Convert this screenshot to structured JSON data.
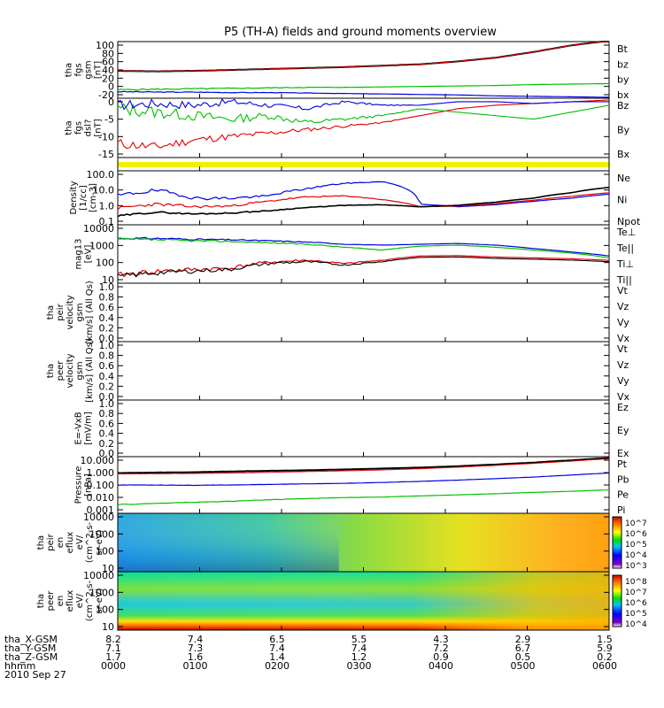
{
  "title": "P5 (TH-A) fields and ground moments overview",
  "colors": {
    "black": "#000000",
    "red": "#e00000",
    "green": "#00c000",
    "blue": "#0000e0",
    "yellow": "#f0f000"
  },
  "chart_data": {
    "type": "line",
    "panels": [
      {
        "id": "fgs",
        "ylabel": [
          "tha",
          "fgs",
          "gsm",
          "[nT]"
        ],
        "yticks": [
          "100",
          "80",
          "60",
          "40",
          "20",
          "0",
          "-20"
        ],
        "ylim": [
          -20,
          100
        ],
        "legend": [
          {
            "text": "Bt",
            "color": "black"
          },
          {
            "text": "bz",
            "color": "red"
          },
          {
            "text": "by",
            "color": "green"
          },
          {
            "text": "bx",
            "color": "blue"
          }
        ]
      },
      {
        "id": "fgs_dsl",
        "ylabel": [
          "tha",
          "fgs",
          "dsl?",
          "[nT]"
        ],
        "yticks": [
          "0",
          "-5",
          "-10",
          "-15"
        ],
        "ylim": [
          -15,
          2
        ],
        "legend": [
          {
            "text": "Bz",
            "color": "red"
          },
          {
            "text": "By",
            "color": "green"
          },
          {
            "text": "Bx",
            "color": "blue"
          }
        ]
      },
      {
        "id": "flag",
        "ylabel": [],
        "yticks": [],
        "legend": []
      },
      {
        "id": "density",
        "ylabel": [
          "Density",
          "[1/cc]",
          "[cm-3]"
        ],
        "yticks": [
          "100.0",
          "10.0",
          "1.0",
          "0.1"
        ],
        "log": true,
        "ylim": [
          0.1,
          100
        ],
        "legend": [
          {
            "text": "Ne",
            "color": "red"
          },
          {
            "text": "Ni",
            "color": "black"
          },
          {
            "text": "Npot",
            "color": "blue"
          }
        ]
      },
      {
        "id": "temp",
        "ylabel": [
          "mag13",
          "[eV]"
        ],
        "yticks": [
          "10000",
          "1000",
          "100",
          "10"
        ],
        "log": true,
        "ylim": [
          10,
          10000
        ],
        "legend": [
          {
            "text": "Te⊥",
            "color": "red"
          },
          {
            "text": "Te||",
            "color": "black"
          },
          {
            "text": "Ti⊥",
            "color": "blue"
          },
          {
            "text": "Ti||",
            "color": "green"
          }
        ]
      },
      {
        "id": "peir_vel",
        "ylabel": [
          "tha",
          "peir",
          "velocity",
          "gsm",
          "[km/s] (All Qs)"
        ],
        "yticks": [
          "1.0",
          "0.8",
          "0.6",
          "0.4",
          "0.2",
          "0.0"
        ],
        "ylim": [
          0,
          1
        ],
        "legend": [
          {
            "text": "Vt",
            "color": "black"
          },
          {
            "text": "Vz",
            "color": "red"
          },
          {
            "text": "Vy",
            "color": "green"
          },
          {
            "text": "Vx",
            "color": "blue"
          }
        ]
      },
      {
        "id": "peer_vel",
        "ylabel": [
          "tha",
          "peer",
          "velocity",
          "gsm",
          "[km/s] (All Qs)"
        ],
        "yticks": [
          "1.0",
          "0.8",
          "0.6",
          "0.4",
          "0.2",
          "0.0"
        ],
        "ylim": [
          0,
          1
        ],
        "legend": [
          {
            "text": "Vt",
            "color": "black"
          },
          {
            "text": "Vz",
            "color": "red"
          },
          {
            "text": "Vy",
            "color": "green"
          },
          {
            "text": "Vx",
            "color": "blue"
          }
        ]
      },
      {
        "id": "efield",
        "ylabel": [
          "E=-VxB",
          "[mV/m]"
        ],
        "yticks": [
          "1.0",
          "0.8",
          "0.6",
          "0.4",
          "0.2",
          "0.0"
        ],
        "ylim": [
          0,
          1
        ],
        "legend": [
          {
            "text": "Ez",
            "color": "red"
          },
          {
            "text": "Ey",
            "color": "green"
          },
          {
            "text": "Ex",
            "color": "blue"
          }
        ]
      },
      {
        "id": "pressure",
        "ylabel": [
          "Pressure",
          "[nPa]"
        ],
        "yticks": [
          "10.000",
          "1.000",
          "0.100",
          "0.010",
          "0.001"
        ],
        "log": true,
        "ylim": [
          0.001,
          10
        ],
        "legend": [
          {
            "text": "Pt",
            "color": "black"
          },
          {
            "text": "Pb",
            "color": "red"
          },
          {
            "text": "Pe",
            "color": "green"
          },
          {
            "text": "Pi",
            "color": "blue"
          }
        ]
      },
      {
        "id": "peir_en",
        "ylabel": [
          "tha",
          "peir",
          "en",
          "eflux",
          "eV/",
          "(cm^2-s-",
          "sr-eV)"
        ],
        "yticks": [
          "10000",
          "1000",
          "100",
          "10"
        ],
        "cbar": [
          "10^7",
          "10^6",
          "10^5",
          "10^4",
          "10^3"
        ]
      },
      {
        "id": "peer_en",
        "ylabel": [
          "tha",
          "peer",
          "en",
          "eflux",
          "eV/",
          "(cm^2-s-",
          "sr-eV)"
        ],
        "yticks": [
          "10000",
          "1000",
          "100",
          "10"
        ],
        "cbar": [
          "10^8",
          "10^7",
          "10^6",
          "10^5",
          "10^4"
        ]
      }
    ],
    "xaxis": {
      "rows": [
        {
          "label": "tha_X-GSM",
          "values": [
            "8.2",
            "7.4",
            "6.5",
            "5.5",
            "4.3",
            "2.9",
            "1.5"
          ]
        },
        {
          "label": "tha_Y-GSM",
          "values": [
            "7.1",
            "7.3",
            "7.4",
            "7.4",
            "7.2",
            "6.7",
            "5.9"
          ]
        },
        {
          "label": "tha_Z-GSM",
          "values": [
            "1.7",
            "1.6",
            "1.4",
            "1.2",
            "0.9",
            "0.5",
            "0.2"
          ]
        },
        {
          "label": "hhmm",
          "values": [
            "0000",
            "0100",
            "0200",
            "0300",
            "0400",
            "0500",
            "0600"
          ]
        }
      ],
      "date": "2010 Sep 27"
    },
    "series": {
      "Bt": [
        38,
        37,
        38,
        40,
        42,
        44,
        46,
        49,
        52,
        58,
        66,
        78,
        92,
        102
      ],
      "bz": [
        38,
        37,
        38,
        40,
        42,
        44,
        46,
        49,
        52,
        58,
        66,
        78,
        92,
        102
      ],
      "by": [
        -2,
        -1,
        0,
        1,
        2,
        3,
        3,
        4,
        5,
        6,
        7,
        9,
        10,
        11
      ],
      "bx": [
        -6,
        -7,
        -7,
        -8,
        -8,
        -9,
        -10,
        -11,
        -12,
        -13,
        -15,
        -16,
        -17,
        -18
      ],
      "Ni": [
        0.3,
        0.5,
        0.4,
        0.45,
        0.6,
        0.9,
        1.2,
        1.3,
        1.0,
        1.2,
        1.8,
        3,
        6,
        12
      ],
      "Ne": [
        0.8,
        1.4,
        1.0,
        1.1,
        2.0,
        3.5,
        4.0,
        2.5,
        1.0,
        1.1,
        1.5,
        2.3,
        3.8,
        6
      ],
      "Npot": [
        4,
        8,
        3,
        3,
        4,
        10,
        20,
        25,
        1.4,
        1.0,
        1.3,
        2,
        3,
        5
      ],
      "Te_perp": [
        25,
        40,
        50,
        60,
        120,
        150,
        100,
        150,
        250,
        260,
        220,
        200,
        180,
        150
      ],
      "Ti_perp": [
        2000,
        2000,
        1800,
        1700,
        1500,
        1300,
        1000,
        900,
        1000,
        1100,
        900,
        600,
        400,
        250
      ],
      "Ti_par": [
        1800,
        1700,
        1500,
        1400,
        1200,
        1000,
        700,
        500,
        800,
        900,
        700,
        500,
        350,
        200
      ],
      "Pt": [
        0.7,
        0.75,
        0.8,
        0.9,
        1.0,
        1.1,
        1.25,
        1.45,
        1.7,
        2.1,
        2.8,
        3.8,
        5.5,
        8
      ],
      "Pb": [
        0.6,
        0.62,
        0.65,
        0.7,
        0.78,
        0.88,
        1.0,
        1.15,
        1.4,
        1.8,
        2.4,
        3.3,
        4.8,
        7
      ],
      "Pe": [
        0.004,
        0.005,
        0.006,
        0.007,
        0.009,
        0.011,
        0.013,
        0.014,
        0.017,
        0.02,
        0.024,
        0.03,
        0.036,
        0.045
      ],
      "Pi": [
        0.1,
        0.1,
        0.095,
        0.1,
        0.11,
        0.12,
        0.13,
        0.15,
        0.18,
        0.22,
        0.28,
        0.36,
        0.5,
        0.7
      ]
    }
  }
}
